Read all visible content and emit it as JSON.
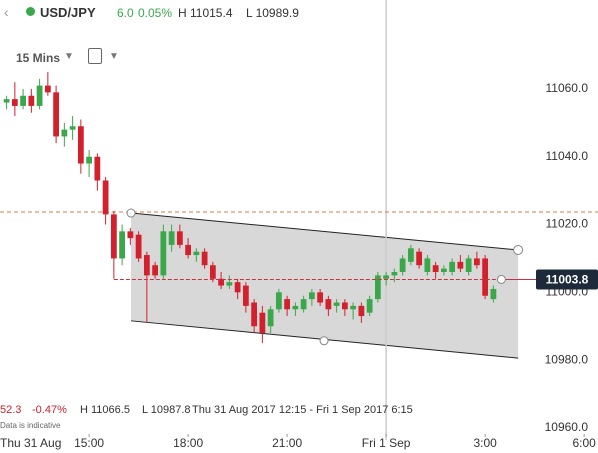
{
  "header": {
    "symbol": "USD/JPY",
    "change": "6.0",
    "change_pct": "0.05%",
    "high": "H 11015.4",
    "low": "L 10989.9"
  },
  "toolbar": {
    "interval": "15 Mins"
  },
  "info": {
    "last": "52.3",
    "change_pct": "-0.47%",
    "high": "H 11066.5",
    "low": "L 10987.8",
    "range": "Thu 31 Aug 2017 12:15 - Fri 1 Sep 2017 6:15",
    "note": "Data is indicative"
  },
  "chart_data": {
    "type": "candlestick",
    "x": [
      12.5,
      12.75,
      13,
      13.25,
      13.5,
      13.75,
      14,
      14.25,
      14.5,
      14.75,
      15,
      15.25,
      15.5,
      15.75,
      16,
      16.25,
      16.5,
      16.75,
      17,
      17.25,
      17.5,
      17.75,
      18,
      18.25,
      18.5,
      18.75,
      19,
      19.25,
      19.5,
      19.75,
      20,
      20.25,
      20.5,
      20.75,
      21,
      21.25,
      21.5,
      21.75,
      22,
      22.25,
      22.5,
      22.75,
      23,
      23.25,
      23.5,
      23.75,
      24,
      24.25,
      24.5,
      24.75,
      25,
      25.25,
      25.5,
      25.75,
      26,
      26.25,
      26.5,
      26.75,
      27,
      27.25
    ],
    "open": [
      11056,
      11057,
      11055,
      11058,
      11055,
      11061,
      11059,
      11046,
      11048,
      11049,
      11038,
      11040,
      11033,
      11023,
      11010,
      11018,
      11017,
      11011,
      11008,
      11005,
      11014,
      11018,
      11014,
      11011,
      11012,
      11008,
      11004,
      11002,
      11003,
      11002,
      10997,
      10994,
      10990,
      10995,
      10998,
      10995,
      10995,
      10998,
      11000,
      10998,
      10996,
      10997,
      10995,
      10996,
      10994,
      10998,
      11004,
      11005,
      11006,
      11009,
      11012,
      11006,
      11008,
      11006,
      11006,
      11009,
      11006,
      11010,
      11010,
      10998
    ],
    "high": [
      11058,
      11062,
      11060,
      11060,
      11063,
      11065,
      11061,
      11050,
      11052,
      11051,
      11042,
      11041,
      11034,
      11024,
      11020,
      11019,
      11018,
      11012,
      11009,
      11020,
      11020,
      11020,
      11016,
      11013,
      11013,
      11009,
      11006,
      11005,
      11004,
      11003,
      10998,
      10996,
      10996,
      11001,
      10999,
      10997,
      10999,
      11001,
      11001,
      10999,
      10998,
      10998,
      10997,
      10997,
      10999,
      11006,
      11006,
      11007,
      11011,
      11014,
      11013,
      11011,
      11009,
      11008,
      11010,
      11011,
      11011,
      11012,
      11011,
      11002
    ],
    "low": [
      11054,
      11052,
      11054,
      11053,
      11054,
      11058,
      11044,
      11043,
      11045,
      11035,
      11034,
      11030,
      11020,
      11004,
      11008,
      11014,
      11009,
      10991,
      11004,
      11004,
      11012,
      11013,
      11010,
      11009,
      11007,
      11003,
      11001,
      11001,
      10998,
      10994,
      10988,
      10985,
      10988,
      10994,
      10993,
      10993,
      10994,
      10996,
      10996,
      10993,
      10994,
      10993,
      10992,
      10991,
      10993,
      10997,
      11002,
      11003,
      11005,
      11008,
      11007,
      11005,
      11004,
      11005,
      11005,
      11006,
      11005,
      11007,
      10998,
      10997
    ],
    "close": [
      11057,
      11055,
      11058,
      11055,
      11061,
      11059,
      11046,
      11048,
      11049,
      11038,
      11040,
      11033,
      11023,
      11010,
      11018,
      11016,
      11010,
      11005,
      11005,
      11018,
      11018,
      11014,
      11011,
      11012,
      11008,
      11004,
      11002,
      11003,
      11000,
      10996,
      10990,
      10988,
      10995,
      11000,
      10995,
      10996,
      10998,
      11000,
      10997,
      10995,
      10997,
      10995,
      10996,
      10993,
      10998,
      11005,
      11005,
      11006,
      11010,
      11013,
      11008,
      11010,
      11006,
      11007,
      11009,
      11007,
      11010,
      11008,
      10999,
      11001
    ],
    "up_color": "#3aa84a",
    "down_color": "#d3202d",
    "xlim": [
      12.3,
      30.42
    ],
    "ylim": [
      10952.6,
      11086.25
    ],
    "xticks": [
      {
        "value": 12,
        "label": "Thu 31 Aug"
      },
      {
        "value": 15,
        "label": "15:00"
      },
      {
        "value": 18,
        "label": "18:00"
      },
      {
        "value": 21,
        "label": "21:00"
      },
      {
        "value": 24,
        "label": "Fri 1 Sep"
      },
      {
        "value": 27,
        "label": "3:00"
      },
      {
        "value": 30,
        "label": "6:00"
      }
    ],
    "yticks": [
      {
        "value": 11060,
        "label": "11060.0"
      },
      {
        "value": 11040,
        "label": "11040.0"
      },
      {
        "value": 11020,
        "label": "11020.0"
      },
      {
        "value": 11000,
        "label": "11000.0"
      },
      {
        "value": 10980,
        "label": "10980.0"
      },
      {
        "value": 10960,
        "label": "10960.0"
      }
    ],
    "session_break": 24,
    "last_price": {
      "value": 11003.8,
      "label": "11003.8",
      "color": "#c8323c"
    },
    "reference_line": {
      "value": 11023.7,
      "color": "#e07b39"
    },
    "channel": {
      "x": [
        16.27,
        28.0
      ],
      "upper": [
        11023.4,
        11012.5
      ],
      "lower": [
        10991.6,
        10980.6
      ],
      "handle_x": 22.12,
      "handle_y": 10985.7,
      "color": "#d4d4d4"
    }
  }
}
